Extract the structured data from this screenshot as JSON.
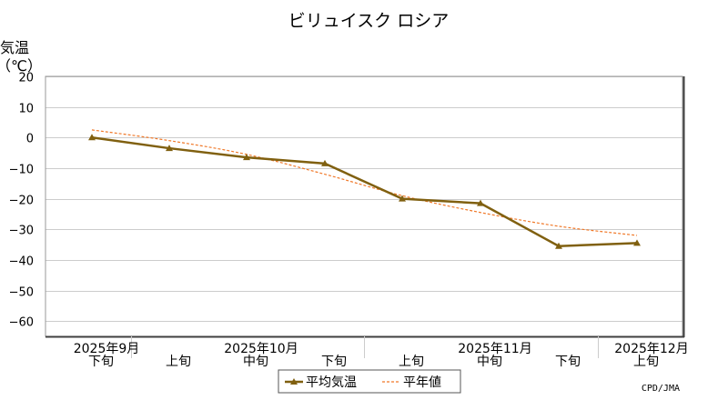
{
  "chart_data": {
    "type": "line",
    "title": "ビリュイスク ロシア",
    "ylabel_line1": "気温",
    "ylabel_line2": "（℃）",
    "ylim": [
      -65,
      20
    ],
    "yticks": [
      20,
      10,
      0,
      -10,
      -20,
      -30,
      -40,
      -50,
      -60
    ],
    "ytick_labels": [
      "20",
      "10",
      "0",
      "−10",
      "−20",
      "−30",
      "−40",
      "−50",
      "−60"
    ],
    "grid": true,
    "categories": [
      "下旬",
      "上旬",
      "中旬",
      "下旬",
      "上旬",
      "中旬",
      "下旬",
      "上旬"
    ],
    "month_labels": [
      {
        "label": "2025年9月",
        "index": 0
      },
      {
        "label": "2025年10月",
        "index": 2
      },
      {
        "label": "2025年11月",
        "index": 5
      },
      {
        "label": "2025年12月",
        "index": 7
      }
    ],
    "month_separators_after_index": [
      0,
      3,
      6
    ],
    "series": [
      {
        "name": "平均気温",
        "color": "#806010",
        "style": "solid-marker-triangle",
        "values": [
          0,
          -3.5,
          -6.5,
          -8.5,
          -20,
          -21.5,
          -35.5,
          -34.5
        ]
      },
      {
        "name": "平年値",
        "color": "#f07828",
        "style": "dashed",
        "values": [
          2.5,
          -1.0,
          -5.5,
          -12.0,
          -19.0,
          -24.5,
          -29.0,
          -32.0
        ]
      }
    ],
    "legend_position": "bottom-center",
    "credit": "CPD/JMA"
  }
}
